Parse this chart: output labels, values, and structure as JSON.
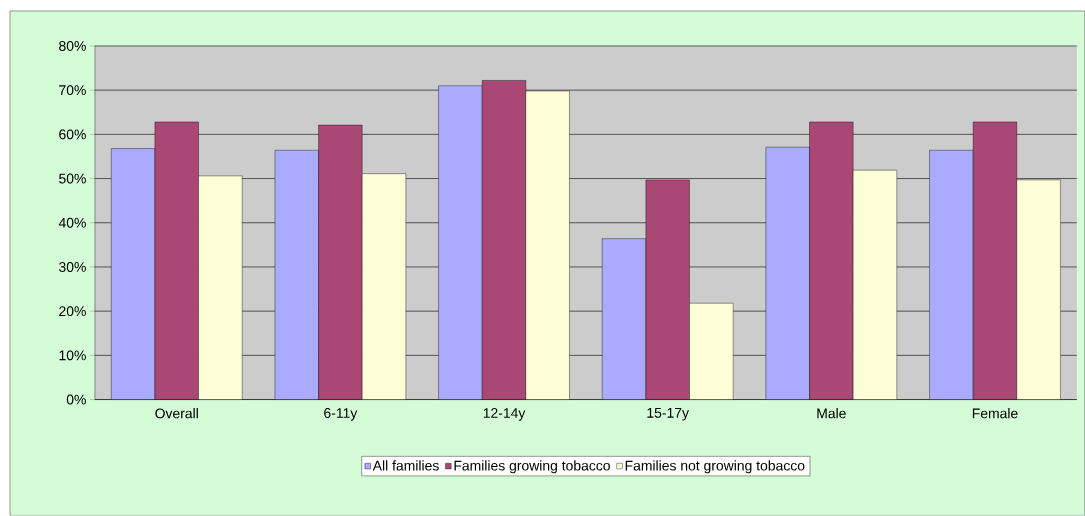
{
  "chart_data": {
    "type": "bar",
    "categories": [
      "Overall",
      "6-11y",
      "12-14y",
      "15-17y",
      "Male",
      "Female"
    ],
    "series": [
      {
        "name": "All families",
        "color": "#aaaaff",
        "values": [
          56.8,
          56.4,
          71.0,
          36.4,
          57.1,
          56.4
        ]
      },
      {
        "name": "Families growing tobacco",
        "color": "#aa4875",
        "values": [
          62.8,
          62.1,
          72.2,
          49.7,
          62.8,
          62.8
        ]
      },
      {
        "name": "Families not growing tobacco",
        "color": "#ffffd7",
        "values": [
          50.6,
          51.1,
          69.8,
          21.8,
          51.9,
          49.7
        ]
      }
    ],
    "ylim": [
      0,
      80
    ],
    "yticks": [
      {
        "value": 0,
        "label": "0%"
      },
      {
        "value": 10,
        "label": "10%"
      },
      {
        "value": 20,
        "label": "20%"
      },
      {
        "value": 30,
        "label": "30%"
      },
      {
        "value": 40,
        "label": "40%"
      },
      {
        "value": 50,
        "label": "50%"
      },
      {
        "value": 60,
        "label": "60%"
      },
      {
        "value": 70,
        "label": "70%"
      },
      {
        "value": 80,
        "label": "80%"
      }
    ],
    "grid": "y",
    "legend": "bottom"
  }
}
